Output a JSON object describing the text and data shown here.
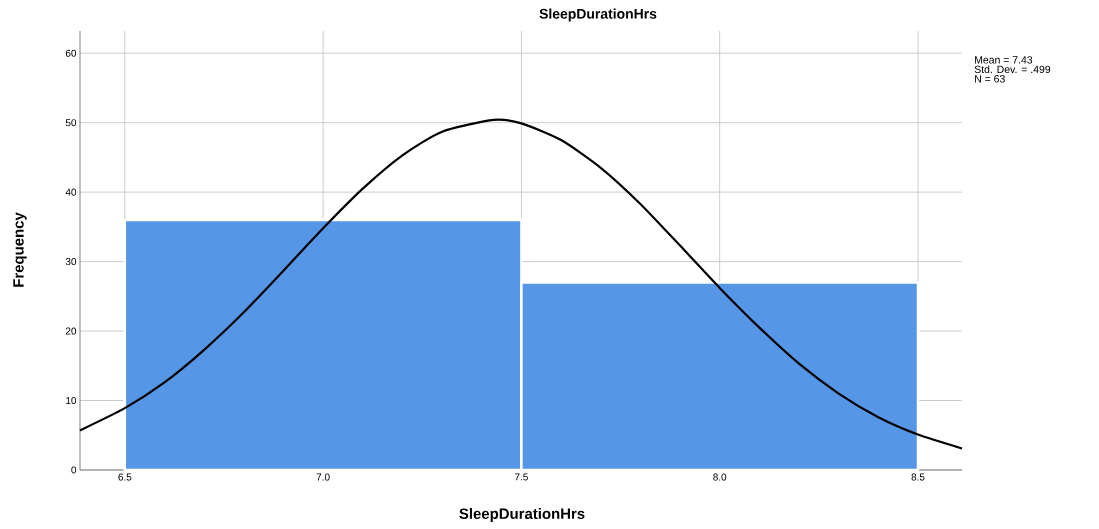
{
  "chart_data": {
    "type": "histogram",
    "title": "SleepDurationHrs",
    "xlabel": "SleepDurationHrs",
    "ylabel": "Frequency",
    "bins": [
      6.5,
      7.5,
      8.5
    ],
    "values": [
      36,
      27
    ],
    "color": "#5596e6",
    "series": [
      {
        "type": "line",
        "color": "#000000",
        "x": [
          6.387,
          6.5,
          6.6,
          6.7,
          6.8,
          6.9,
          7.0,
          7.1,
          7.2,
          7.3,
          7.43,
          7.5,
          7.6,
          7.7,
          7.8,
          7.9,
          8.0,
          8.1,
          8.2,
          8.3,
          8.4,
          8.5,
          8.611
        ],
        "values": [
          5.7,
          8.9,
          12.6,
          17.3,
          22.7,
          28.7,
          34.8,
          40.5,
          45.3,
          48.7,
          50.4,
          49.9,
          47.5,
          43.5,
          38.3,
          32.3,
          26.2,
          20.5,
          15.3,
          11.0,
          7.6,
          5.1,
          3.1
        ]
      }
    ],
    "xlim": [
      6.387,
      8.611
    ],
    "ylim": [
      0,
      63.2
    ],
    "xticks": [
      {
        "value": 6.5,
        "label": "6.5"
      },
      {
        "value": 7.0,
        "label": "7.0"
      },
      {
        "value": 7.5,
        "label": "7.5"
      },
      {
        "value": 8.0,
        "label": "8.0"
      },
      {
        "value": 8.5,
        "label": "8.5"
      }
    ],
    "yticks": [
      0,
      10,
      20,
      30,
      40,
      50,
      60
    ],
    "grid": true,
    "marker": "none",
    "line_style": "solid",
    "annotations": [
      "Mean = 7.43",
      "Std. Dev. = .499",
      "N = 63"
    ]
  }
}
